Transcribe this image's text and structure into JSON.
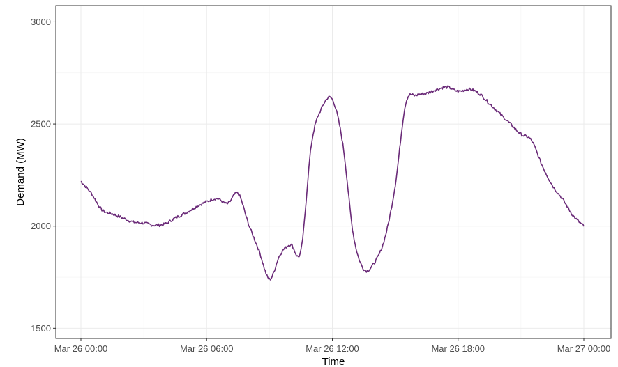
{
  "chart_data": {
    "type": "line",
    "title": "",
    "xlabel": "Time",
    "ylabel": "Demand (MW)",
    "x_tick_labels": [
      "Mar 26 00:00",
      "Mar 26 06:00",
      "Mar 26 12:00",
      "Mar 26 18:00",
      "Mar 27 00:00"
    ],
    "y_ticks": [
      1500,
      2000,
      2500,
      3000
    ],
    "xlim": [
      "2024-03-26 00:00",
      "2024-03-27 00:00"
    ],
    "ylim": [
      1450,
      3080
    ],
    "grid": true,
    "line_color": "#6a2a78",
    "series": [
      {
        "x": [
          "00:00",
          "00:30",
          "01:00",
          "01:30",
          "02:00",
          "02:30",
          "03:00",
          "03:30",
          "04:00",
          "04:30",
          "05:00",
          "05:30",
          "06:00",
          "06:30",
          "07:00",
          "07:30",
          "08:00",
          "08:30",
          "09:00",
          "09:30",
          "10:00",
          "10:30",
          "11:00",
          "11:30",
          "12:00",
          "12:30",
          "13:00",
          "13:30",
          "14:00",
          "14:30",
          "15:00",
          "15:30",
          "16:00",
          "16:30",
          "17:00",
          "17:30",
          "18:00",
          "18:30",
          "19:00",
          "19:30",
          "20:00",
          "20:30",
          "21:00",
          "21:30",
          "22:00",
          "22:30",
          "23:00",
          "23:30",
          "24:00"
        ],
        "values": [
          2220,
          2160,
          2080,
          2060,
          2040,
          2020,
          2015,
          2005,
          2010,
          2040,
          2065,
          2095,
          2120,
          2135,
          2110,
          2160,
          2010,
          1880,
          1740,
          1860,
          1910,
          1880,
          2400,
          2580,
          2620,
          2400,
          1960,
          1790,
          1820,
          1940,
          2200,
          2600,
          2640,
          2650,
          2670,
          2680,
          2660,
          2670,
          2650,
          2600,
          2550,
          2500,
          2450,
          2420,
          2300,
          2200,
          2130,
          2050,
          2000
        ]
      }
    ]
  }
}
